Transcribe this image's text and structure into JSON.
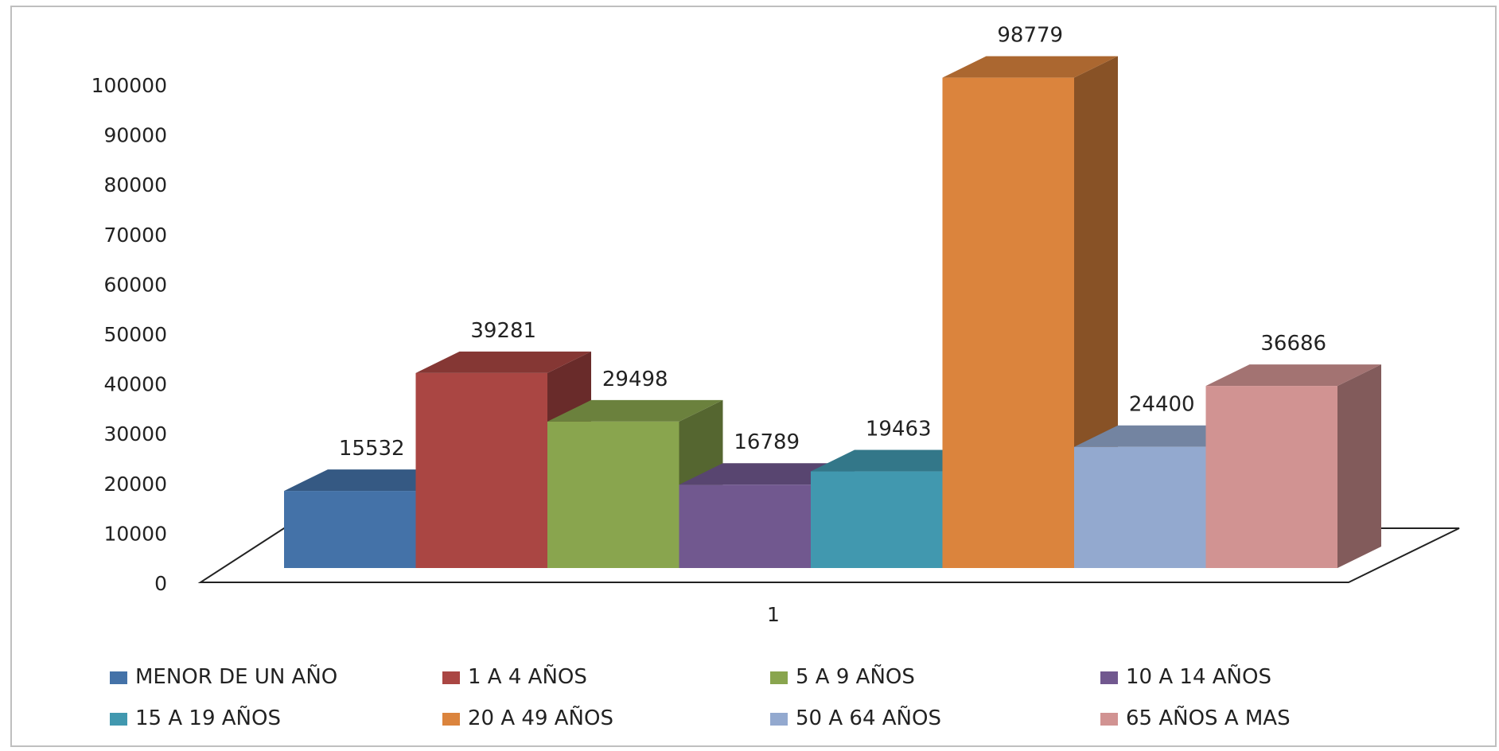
{
  "chart_data": {
    "type": "bar",
    "categories": [
      "1"
    ],
    "series": [
      {
        "name": "MENOR DE UN AÑO",
        "values": [
          15532
        ],
        "color": "#4472A8"
      },
      {
        "name": "1 A 4 AÑOS",
        "values": [
          39281
        ],
        "color": "#AA4643"
      },
      {
        "name": "5 A 9 AÑOS",
        "values": [
          29498
        ],
        "color": "#89A54E"
      },
      {
        "name": "10 A 14 AÑOS",
        "values": [
          16789
        ],
        "color": "#71588F"
      },
      {
        "name": "15 A 19 AÑOS",
        "values": [
          19463
        ],
        "color": "#4198AF"
      },
      {
        "name": "20 A 49 AÑOS",
        "values": [
          98779
        ],
        "color": "#DB843D"
      },
      {
        "name": "50 A 64 AÑOS",
        "values": [
          24400
        ],
        "color": "#93A9CF"
      },
      {
        "name": "65 AÑOS A MAS",
        "values": [
          36686
        ],
        "color": "#D19392"
      }
    ],
    "yticks": [
      "0",
      "10000",
      "20000",
      "30000",
      "40000",
      "50000",
      "60000",
      "70000",
      "80000",
      "90000",
      "100000"
    ],
    "ylim": [
      0,
      100000
    ],
    "title": "",
    "xlabel": "",
    "ylabel": "",
    "grid": false,
    "legend": "bottom",
    "style": "3d-clustered-column"
  }
}
